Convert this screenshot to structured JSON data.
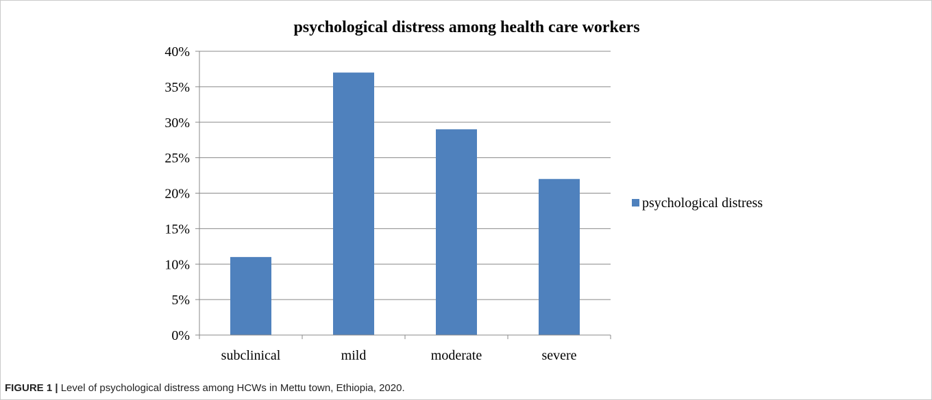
{
  "chart_data": {
    "type": "bar",
    "title": "psychological distress among health care workers",
    "categories": [
      "subclinical",
      "mild",
      "moderate",
      "severe"
    ],
    "series": [
      {
        "name": "psychological distress",
        "values": [
          11,
          37,
          29,
          22
        ],
        "color": "#4f81bd"
      }
    ],
    "ylim": [
      0,
      40
    ],
    "ytick_labels": [
      "0%",
      "5%",
      "10%",
      "15%",
      "20%",
      "25%",
      "30%",
      "35%",
      "40%"
    ],
    "ytick_values": [
      0,
      5,
      10,
      15,
      20,
      25,
      30,
      35,
      40
    ],
    "grid": true,
    "legend_position": "right"
  },
  "caption": {
    "label": "FIGURE 1 |",
    "text": " Level of psychological distress among HCWs in Mettu town, Ethiopia, 2020."
  }
}
